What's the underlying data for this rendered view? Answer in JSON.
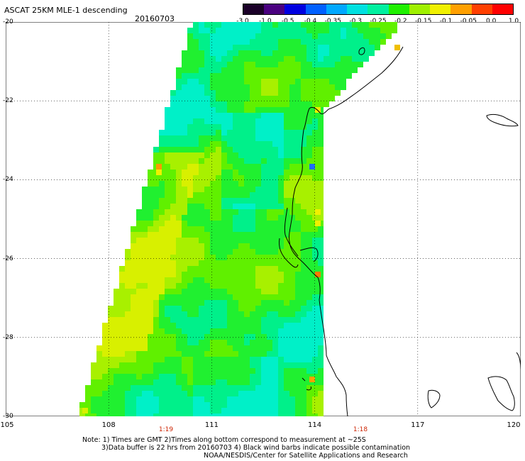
{
  "header": {
    "title": "ASCAT 25KM MLE-1 descending",
    "date": "20160703"
  },
  "colorbar": {
    "labels": [
      "-3.0",
      "-1.0",
      "-0.5",
      "-0.4",
      "-0.35",
      "-0.3",
      "-0.25",
      "-0.2",
      "-0.15",
      "-0.1",
      "-0.05",
      "0.0",
      "1.0"
    ],
    "colors": [
      "#1a0028",
      "#4a0080",
      "#0000e0",
      "#0060ff",
      "#00a8ff",
      "#00e0e0",
      "#00f0a0",
      "#20f000",
      "#a0f000",
      "#f0f000",
      "#ffa000",
      "#ff4000",
      "#ff0000"
    ]
  },
  "axes": {
    "lat_labels": [
      "-20",
      "-22",
      "-24",
      "-26",
      "-28",
      "-30"
    ],
    "lon_labels": [
      "105",
      "108",
      "111",
      "114",
      "117",
      "120"
    ],
    "time_labels": [
      "1:19",
      "1:18"
    ]
  },
  "note": {
    "line1": "Note: 1) Times are GMT 2)Times along bottom correspond to measurement at ~25S",
    "line2": "3)Data buffer is 22 hrs from 20160703 4) Black wind barbs indicate possible contamination",
    "line3": "NOAA/NESDIS/Center for Satellite Applications and Research"
  }
}
